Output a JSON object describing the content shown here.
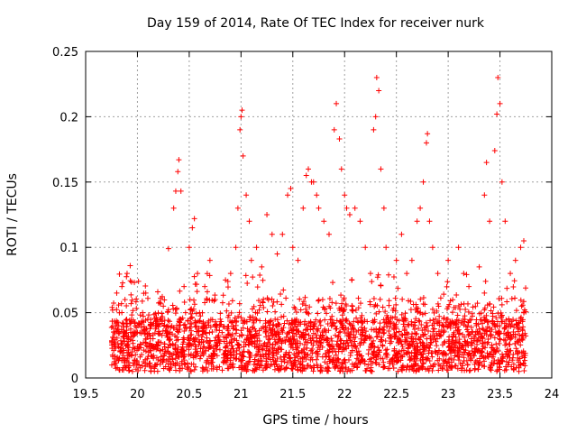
{
  "chart_data": {
    "type": "scatter",
    "title": "Day 159 of 2014, Rate Of TEC Index for receiver nurk",
    "xlabel": "GPS time / hours",
    "ylabel": "ROTI / TECUs",
    "xlim": [
      19.5,
      24
    ],
    "ylim": [
      0,
      0.25
    ],
    "xticks": [
      19.5,
      20,
      20.5,
      21,
      21.5,
      22,
      22.5,
      23,
      23.5,
      24
    ],
    "xtick_labels": [
      "19.5",
      "20",
      "20.5",
      "21",
      "21.5",
      "22",
      "22.5",
      "23",
      "23.5",
      "24"
    ],
    "yticks": [
      0,
      0.05,
      0.1,
      0.15,
      0.2,
      0.25
    ],
    "ytick_labels": [
      "0",
      "0.05",
      "0.1",
      "0.15",
      "0.2",
      "0.25"
    ],
    "grid": true,
    "marker": "+",
    "series_color": "#ff0000",
    "x_range_of_data": [
      19.75,
      23.75
    ],
    "series": [
      {
        "name": "ROTI",
        "points": [
          [
            19.76,
            0.052
          ],
          [
            19.8,
            0.065
          ],
          [
            19.85,
            0.07
          ],
          [
            19.9,
            0.08
          ],
          [
            19.93,
            0.086
          ],
          [
            19.88,
            0.06
          ],
          [
            19.82,
            0.04
          ],
          [
            19.78,
            0.025
          ],
          [
            19.9,
            0.03
          ],
          [
            19.95,
            0.02
          ],
          [
            20.0,
            0.035
          ],
          [
            20.05,
            0.05
          ],
          [
            20.1,
            0.045
          ],
          [
            20.15,
            0.03
          ],
          [
            20.2,
            0.04
          ],
          [
            20.25,
            0.055
          ],
          [
            20.3,
            0.099
          ],
          [
            20.35,
            0.13
          ],
          [
            20.37,
            0.143
          ],
          [
            20.39,
            0.158
          ],
          [
            20.4,
            0.167
          ],
          [
            20.42,
            0.143
          ],
          [
            20.45,
            0.07
          ],
          [
            20.5,
            0.1
          ],
          [
            20.53,
            0.115
          ],
          [
            20.55,
            0.122
          ],
          [
            20.58,
            0.08
          ],
          [
            20.6,
            0.05
          ],
          [
            20.65,
            0.07
          ],
          [
            20.7,
            0.09
          ],
          [
            20.75,
            0.06
          ],
          [
            20.8,
            0.045
          ],
          [
            20.85,
            0.075
          ],
          [
            20.9,
            0.08
          ],
          [
            20.95,
            0.1
          ],
          [
            20.97,
            0.13
          ],
          [
            20.99,
            0.19
          ],
          [
            21.0,
            0.2
          ],
          [
            21.01,
            0.205
          ],
          [
            21.02,
            0.17
          ],
          [
            21.05,
            0.14
          ],
          [
            21.08,
            0.12
          ],
          [
            21.1,
            0.09
          ],
          [
            21.15,
            0.1
          ],
          [
            21.2,
            0.085
          ],
          [
            21.25,
            0.125
          ],
          [
            21.3,
            0.11
          ],
          [
            21.35,
            0.095
          ],
          [
            21.4,
            0.11
          ],
          [
            21.45,
            0.14
          ],
          [
            21.48,
            0.145
          ],
          [
            21.5,
            0.1
          ],
          [
            21.55,
            0.09
          ],
          [
            21.6,
            0.13
          ],
          [
            21.63,
            0.155
          ],
          [
            21.65,
            0.16
          ],
          [
            21.68,
            0.15
          ],
          [
            21.7,
            0.15
          ],
          [
            21.73,
            0.14
          ],
          [
            21.75,
            0.13
          ],
          [
            21.8,
            0.12
          ],
          [
            21.85,
            0.11
          ],
          [
            21.9,
            0.19
          ],
          [
            21.92,
            0.21
          ],
          [
            21.95,
            0.183
          ],
          [
            21.97,
            0.16
          ],
          [
            22.0,
            0.14
          ],
          [
            22.02,
            0.13
          ],
          [
            22.05,
            0.125
          ],
          [
            22.1,
            0.13
          ],
          [
            22.15,
            0.12
          ],
          [
            22.2,
            0.1
          ],
          [
            22.25,
            0.08
          ],
          [
            22.28,
            0.19
          ],
          [
            22.3,
            0.2
          ],
          [
            22.31,
            0.23
          ],
          [
            22.33,
            0.22
          ],
          [
            22.35,
            0.16
          ],
          [
            22.38,
            0.13
          ],
          [
            22.4,
            0.1
          ],
          [
            22.5,
            0.09
          ],
          [
            22.55,
            0.11
          ],
          [
            22.6,
            0.08
          ],
          [
            22.65,
            0.09
          ],
          [
            22.7,
            0.12
          ],
          [
            22.73,
            0.13
          ],
          [
            22.76,
            0.15
          ],
          [
            22.79,
            0.18
          ],
          [
            22.8,
            0.187
          ],
          [
            22.82,
            0.12
          ],
          [
            22.85,
            0.1
          ],
          [
            22.9,
            0.08
          ],
          [
            23.0,
            0.09
          ],
          [
            23.1,
            0.1
          ],
          [
            23.15,
            0.08
          ],
          [
            23.2,
            0.07
          ],
          [
            23.3,
            0.085
          ],
          [
            23.35,
            0.14
          ],
          [
            23.37,
            0.165
          ],
          [
            23.4,
            0.12
          ],
          [
            23.45,
            0.174
          ],
          [
            23.47,
            0.202
          ],
          [
            23.48,
            0.23
          ],
          [
            23.5,
            0.21
          ],
          [
            23.52,
            0.15
          ],
          [
            23.55,
            0.12
          ],
          [
            23.6,
            0.08
          ],
          [
            23.65,
            0.09
          ],
          [
            23.7,
            0.1
          ],
          [
            23.73,
            0.105
          ]
        ],
        "dense_band": {
          "description": "dense cloud of points between roughly 0.005 and 0.08 across the whole time range",
          "x_range": [
            19.75,
            23.75
          ],
          "y_range": [
            0.005,
            0.08
          ],
          "typical_level": 0.025
        }
      }
    ]
  }
}
